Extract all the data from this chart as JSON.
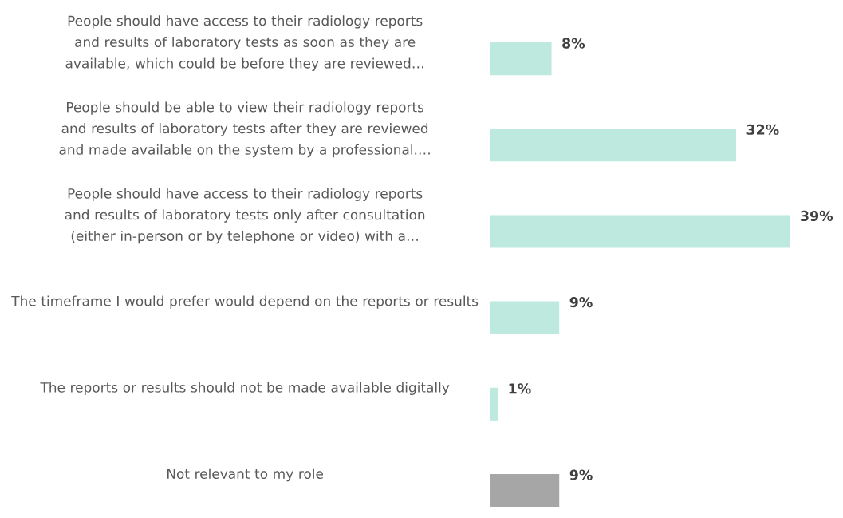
{
  "chart_data": {
    "type": "bar",
    "orientation": "horizontal",
    "categories": [
      "People should have access to their radiology reports and results of laboratory tests as soon as they are available, which could be before they are reviewed…",
      "People should be able to view their radiology reports and results of laboratory tests after they are reviewed and made available on the system by a professional.…",
      "People should have access to their radiology reports and results of laboratory tests only after consultation (either in-person or by telephone or video) with a…",
      "The timeframe I would prefer would depend on the reports or results",
      "The reports or results should not be made available digitally",
      "Not relevant to my role"
    ],
    "values": [
      8,
      32,
      39,
      9,
      1,
      9
    ],
    "colors": [
      "#bde9df",
      "#bde9df",
      "#bde9df",
      "#bde9df",
      "#bde9df",
      "#a6a6a6"
    ],
    "value_labels": [
      "8%",
      "32%",
      "39%",
      "9%",
      "1%",
      "9%"
    ]
  }
}
